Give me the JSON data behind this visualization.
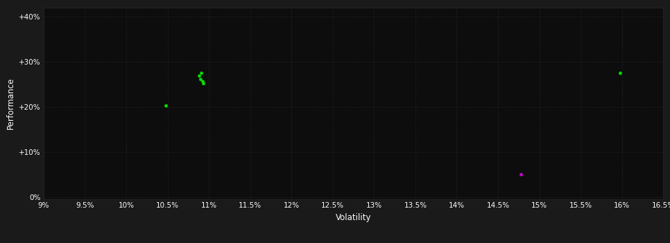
{
  "background_color": "#1a1a1a",
  "plot_bg_color": "#0d0d0d",
  "grid_color": "#2a2a2a",
  "text_color": "#ffffff",
  "xlabel": "Volatility",
  "ylabel": "Performance",
  "xlim": [
    0.09,
    0.165
  ],
  "ylim": [
    -0.005,
    0.42
  ],
  "xticks": [
    0.09,
    0.095,
    0.1,
    0.105,
    0.11,
    0.115,
    0.12,
    0.125,
    0.13,
    0.135,
    0.14,
    0.145,
    0.15,
    0.155,
    0.16,
    0.165
  ],
  "xtick_labels": [
    "9%",
    "9.5%",
    "10%",
    "10.5%",
    "11%",
    "11.5%",
    "12%",
    "12.5%",
    "13%",
    "13.5%",
    "14%",
    "14.5%",
    "15%",
    "15.5%",
    "16%",
    "16.5%"
  ],
  "yticks": [
    0.0,
    0.1,
    0.2,
    0.3,
    0.4
  ],
  "ytick_labels": [
    "0%",
    "+10%",
    "+20%",
    "+30%",
    "+40%"
  ],
  "green_points": [
    [
      0.1048,
      0.202
    ],
    [
      0.1088,
      0.268
    ],
    [
      0.109,
      0.261
    ],
    [
      0.1092,
      0.256
    ],
    [
      0.1093,
      0.251
    ],
    [
      0.1091,
      0.274
    ],
    [
      0.1598,
      0.274
    ]
  ],
  "magenta_points": [
    [
      0.1478,
      0.05
    ]
  ],
  "green_color": "#00dd00",
  "magenta_color": "#cc00cc",
  "marker_size": 12
}
